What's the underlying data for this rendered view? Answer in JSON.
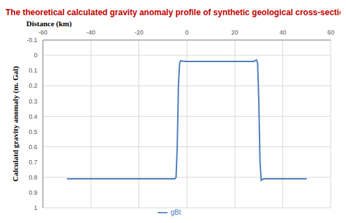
{
  "chart_data": {
    "type": "line",
    "title": "The theoretical calculated gravity anomaly profile of synthetic geological cross-section model",
    "x_label": "Distance (km)",
    "y_label": "Calculatd gravity anomaly (m. Gal)",
    "x": [
      -50,
      -10,
      -5,
      -4.5,
      -4,
      -3.5,
      -3,
      -2.5,
      -2,
      0,
      10,
      20,
      28,
      28.5,
      29,
      29.5,
      30,
      30.5,
      31,
      31.5,
      32,
      32.5,
      33,
      35,
      50
    ],
    "series": [
      {
        "name": "gBt",
        "color": "#4a7ebb",
        "values": [
          0.81,
          0.81,
          0.81,
          0.8,
          0.6,
          0.2,
          0.05,
          0.035,
          0.038,
          0.04,
          0.04,
          0.04,
          0.04,
          0.035,
          0.03,
          0.05,
          0.3,
          0.7,
          0.82,
          0.815,
          0.81,
          0.81,
          0.81,
          0.81,
          0.81
        ]
      }
    ],
    "xlim": [
      -60,
      60
    ],
    "xticks": [
      -60,
      -40,
      -20,
      0,
      20,
      40,
      60
    ],
    "ylim": [
      -0.1,
      1
    ],
    "yticks": [
      -0.1,
      0,
      0.1,
      0.2,
      0.3,
      0.4,
      0.5,
      0.6,
      0.7,
      0.8,
      0.9,
      1
    ],
    "grid": true,
    "legend": "bottom"
  }
}
